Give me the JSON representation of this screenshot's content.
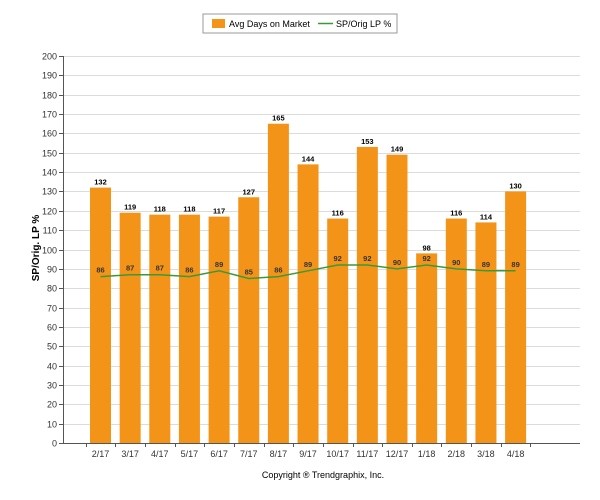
{
  "chart_data": {
    "type": "bar",
    "categories": [
      "2/17",
      "3/17",
      "4/17",
      "5/17",
      "6/17",
      "7/17",
      "8/17",
      "9/17",
      "10/17",
      "11/17",
      "12/17",
      "1/18",
      "2/18",
      "3/18",
      "4/18"
    ],
    "series": [
      {
        "name": "Avg Days on Market",
        "type": "bar",
        "color": "#f39419",
        "values": [
          132,
          119,
          118,
          118,
          117,
          127,
          165,
          144,
          116,
          153,
          149,
          98,
          116,
          114,
          130
        ]
      },
      {
        "name": "SP/Orig LP %",
        "type": "line",
        "color": "#3a9a3a",
        "values": [
          86,
          87,
          87,
          86,
          89,
          85,
          86,
          89,
          92,
          92,
          90,
          92,
          90,
          89,
          89
        ]
      }
    ],
    "ylabel": "SP/Orig. LP %",
    "xlabel": "",
    "ylim": [
      0,
      200
    ],
    "ytick_step": 10,
    "grid": true,
    "legend_position": "top-center"
  },
  "footer": {
    "copyright": "Copyright ® Trendgraphix, Inc."
  }
}
